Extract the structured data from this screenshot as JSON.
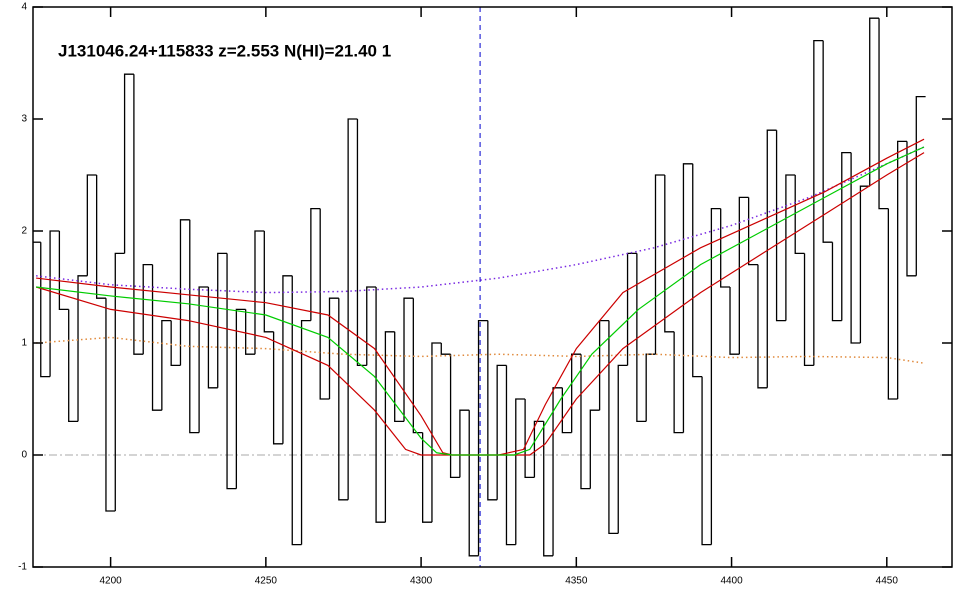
{
  "chart_data": {
    "type": "line",
    "title": "J131046.24+115833 z=2.553 N(HI)=21.40 1",
    "xlim": [
      4175,
      4471
    ],
    "xticks": [
      4200,
      4250,
      4300,
      4350,
      4400,
      4450
    ],
    "ylim": [
      -1,
      4
    ],
    "yticks": [
      -1,
      0,
      1,
      2,
      3,
      4
    ],
    "hline": 0,
    "hline_color": "#aaaaaa",
    "vline": 4319,
    "vline_color": "#0000cc",
    "series": [
      {
        "style": "step",
        "color": "#000000",
        "x": [
          4176,
          4179,
          4182,
          4185,
          4188,
          4191,
          4194,
          4197,
          4200,
          4203,
          4206,
          4209,
          4212,
          4215,
          4218,
          4221,
          4224,
          4227,
          4230,
          4233,
          4236,
          4239,
          4242,
          4245,
          4248,
          4251,
          4254,
          4257,
          4260,
          4263,
          4266,
          4269,
          4272,
          4275,
          4278,
          4281,
          4284,
          4287,
          4290,
          4293,
          4296,
          4299,
          4302,
          4305,
          4308,
          4311,
          4314,
          4317,
          4320,
          4323,
          4326,
          4329,
          4332,
          4335,
          4338,
          4341,
          4344,
          4347,
          4350,
          4353,
          4356,
          4359,
          4362,
          4365,
          4368,
          4371,
          4374,
          4377,
          4380,
          4383,
          4386,
          4389,
          4392,
          4395,
          4398,
          4401,
          4404,
          4407,
          4410,
          4413,
          4416,
          4419,
          4422,
          4425,
          4428,
          4431,
          4434,
          4437,
          4440,
          4443,
          4446,
          4449,
          4452,
          4455,
          4458,
          4461
        ],
        "values": [
          1.9,
          0.7,
          2.0,
          1.3,
          0.3,
          1.6,
          2.5,
          1.4,
          -0.5,
          1.8,
          3.4,
          0.9,
          1.7,
          0.4,
          1.2,
          0.8,
          2.1,
          0.2,
          1.5,
          0.6,
          1.8,
          -0.3,
          1.3,
          0.9,
          2.0,
          1.1,
          0.1,
          1.6,
          -0.8,
          1.2,
          2.2,
          0.5,
          1.4,
          -0.4,
          3.0,
          0.8,
          1.5,
          -0.6,
          1.1,
          0.3,
          1.4,
          0.2,
          -0.6,
          1.0,
          0.9,
          -0.2,
          0.4,
          -0.9,
          1.2,
          -0.4,
          0.8,
          -0.8,
          0.5,
          -0.2,
          0.3,
          -0.9,
          0.6,
          0.2,
          0.9,
          -0.3,
          0.4,
          1.2,
          -0.7,
          0.8,
          1.8,
          0.3,
          0.9,
          2.5,
          1.1,
          0.2,
          2.6,
          0.7,
          -0.8,
          2.2,
          1.5,
          0.9,
          2.3,
          1.7,
          0.6,
          2.9,
          1.2,
          2.5,
          1.8,
          0.8,
          3.7,
          1.9,
          1.2,
          2.7,
          1.0,
          2.4,
          3.9,
          2.2,
          0.5,
          2.8,
          1.6,
          3.2
        ]
      },
      {
        "style": "dotted",
        "color": "#e08a3c",
        "x": [
          4176,
          4200,
          4225,
          4250,
          4275,
          4300,
          4325,
          4350,
          4375,
          4400,
          4425,
          4450,
          4462
        ],
        "values": [
          1.0,
          1.05,
          0.97,
          0.95,
          0.9,
          0.88,
          0.9,
          0.88,
          0.9,
          0.87,
          0.88,
          0.87,
          0.82
        ]
      },
      {
        "style": "dotted",
        "color": "#7a2be2",
        "x": [
          4176,
          4200,
          4225,
          4250,
          4275,
          4300,
          4325,
          4350,
          4375,
          4400,
          4425,
          4450,
          4462
        ],
        "values": [
          1.6,
          1.52,
          1.48,
          1.45,
          1.46,
          1.5,
          1.58,
          1.7,
          1.85,
          2.05,
          2.3,
          2.6,
          2.75
        ]
      },
      {
        "style": "solid",
        "color": "#cc0000",
        "x": [
          4176,
          4200,
          4225,
          4250,
          4270,
          4285,
          4300,
          4307,
          4310,
          4325,
          4333,
          4340,
          4350,
          4365,
          4390,
          4410,
          4430,
          4450,
          4462
        ],
        "values": [
          1.58,
          1.5,
          1.43,
          1.36,
          1.25,
          0.95,
          0.35,
          0.02,
          0,
          0,
          0.05,
          0.45,
          0.95,
          1.45,
          1.85,
          2.1,
          2.35,
          2.65,
          2.82
        ]
      },
      {
        "style": "solid",
        "color": "#cc0000",
        "x": [
          4176,
          4200,
          4225,
          4250,
          4270,
          4285,
          4295,
          4300,
          4335,
          4340,
          4350,
          4365,
          4390,
          4410,
          4430,
          4450,
          4462
        ],
        "values": [
          1.5,
          1.3,
          1.2,
          1.05,
          0.8,
          0.4,
          0.05,
          0,
          0,
          0.1,
          0.5,
          0.95,
          1.45,
          1.8,
          2.15,
          2.5,
          2.7
        ]
      },
      {
        "style": "solid",
        "color": "#00cc00",
        "x": [
          4176,
          4200,
          4225,
          4250,
          4270,
          4285,
          4300,
          4305,
          4310,
          4330,
          4335,
          4345,
          4355,
          4370,
          4390,
          4410,
          4430,
          4450,
          4462
        ],
        "values": [
          1.5,
          1.42,
          1.35,
          1.25,
          1.05,
          0.7,
          0.15,
          0.02,
          0,
          0,
          0.05,
          0.5,
          0.9,
          1.3,
          1.7,
          2.0,
          2.3,
          2.6,
          2.75
        ]
      }
    ]
  }
}
